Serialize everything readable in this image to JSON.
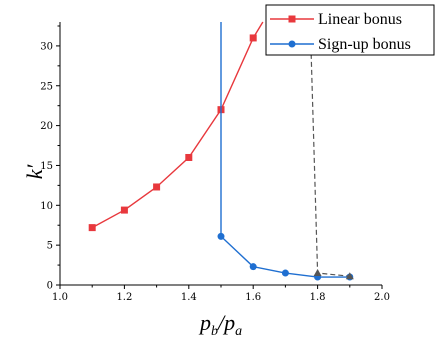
{
  "chart_data": {
    "type": "line",
    "xlabel": {
      "main": "p",
      "sub1": "b",
      "slash": "/",
      "main2": "p",
      "sub2": "a"
    },
    "ylabel": "k′",
    "xlim": [
      1.0,
      2.0
    ],
    "ylim": [
      0,
      33
    ],
    "x_ticks": [
      "1.0",
      "1.2",
      "1.4",
      "1.6",
      "1.8",
      "2.0"
    ],
    "y_ticks": [
      "0",
      "5",
      "10",
      "15",
      "20",
      "25",
      "30"
    ],
    "legend_position": "top-right",
    "series": [
      {
        "name": "Linear bonus",
        "color": "#e8383d",
        "marker": "square",
        "x": [
          1.1,
          1.2,
          1.3,
          1.4,
          1.5,
          1.6,
          1.63
        ],
        "y": [
          7.2,
          9.4,
          12.3,
          16.0,
          22.0,
          31.0,
          33.0
        ]
      },
      {
        "name": "Sign-up bonus",
        "color": "#1f6fd1",
        "marker": "circle",
        "x": [
          1.5,
          1.5,
          1.6,
          1.7,
          1.8,
          1.9
        ],
        "y": [
          33.0,
          6.1,
          2.3,
          1.5,
          1.0,
          1.0
        ]
      },
      {
        "name": "",
        "color": "#555555",
        "marker": "triangle",
        "dashed": true,
        "x": [
          1.78,
          1.8,
          1.9
        ],
        "y": [
          29.0,
          1.5,
          1.1
        ]
      }
    ]
  }
}
